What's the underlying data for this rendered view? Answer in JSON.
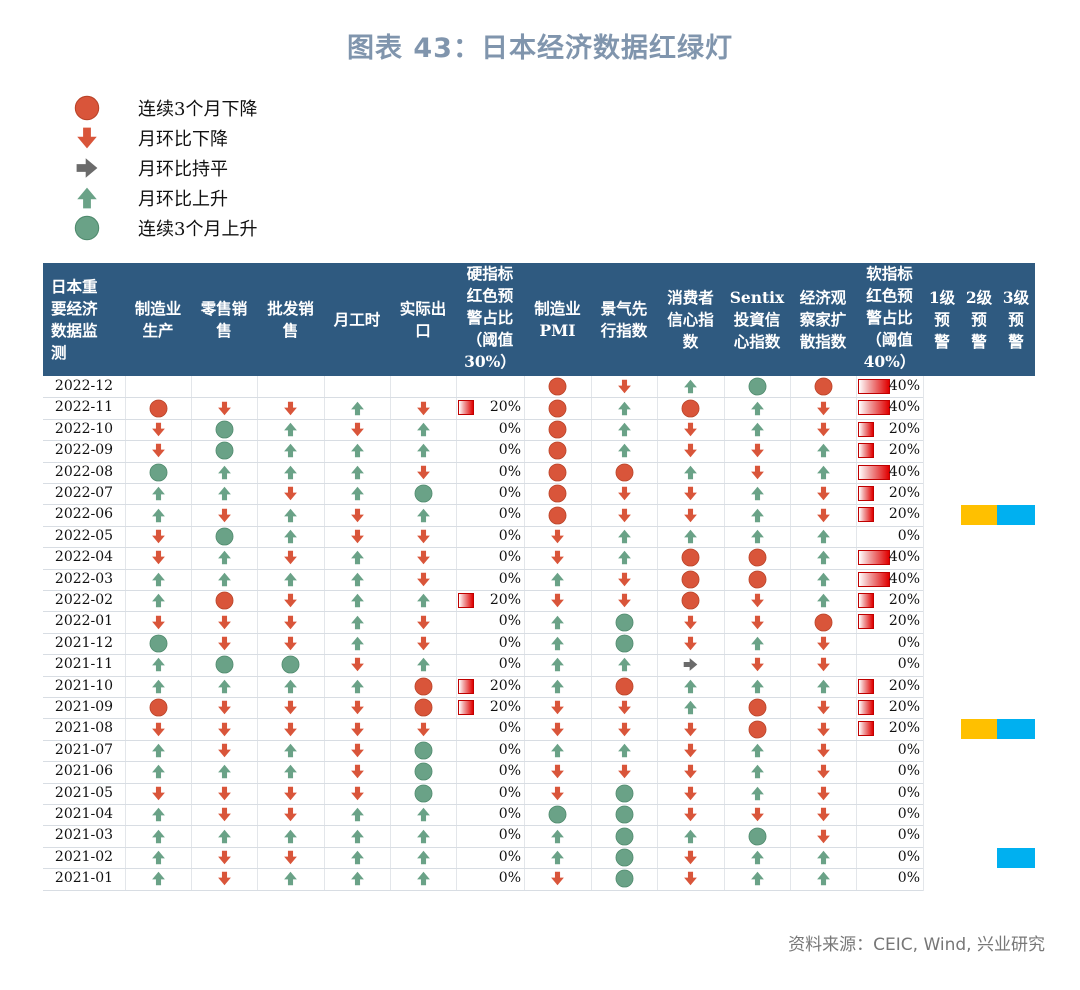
{
  "title": "图表 43：日本经济数据红绿灯",
  "legend": [
    {
      "icon": "red-circle-icon",
      "label": "连续3个月下降"
    },
    {
      "icon": "red-down-arrow-icon",
      "label": "月环比下降"
    },
    {
      "icon": "gray-right-arrow-icon",
      "label": "月环比持平"
    },
    {
      "icon": "green-up-arrow-icon",
      "label": "月环比上升"
    },
    {
      "icon": "green-circle-icon",
      "label": "连续3个月上升"
    }
  ],
  "colors": {
    "red": "#d9553a",
    "green": "#6aa287",
    "gray": "#6b6b6b",
    "header": "#2f5a80",
    "yellow": "#ffc000",
    "blue": "#00b0f0"
  },
  "source": "资料来源：CEIC, Wind, 兴业研究",
  "chart_data": {
    "type": "table",
    "columns": [
      "日本重要经济数据监测",
      "制造业生产",
      "零售销售",
      "批发销售",
      "月工时",
      "实际出口",
      "硬指标红色预警占比（阈值30%）",
      "制造业PMI",
      "景气先行指数",
      "消费者信心指数",
      "Sentix投資信心指数",
      "经济观察家扩散指数",
      "软指标红色预警占比（阈值40%）",
      "1级预警",
      "2级预警",
      "3级预警"
    ],
    "code_legend": {
      "R": "连续3个月下降",
      "d": "月环比下降",
      "f": "月环比持平",
      "u": "月环比上升",
      "G": "连续3个月上升"
    },
    "rows": [
      {
        "date": "2022-12",
        "hard": [
          "",
          "",
          "",
          "",
          ""
        ],
        "hard_pct": null,
        "soft": [
          "R",
          "d",
          "u",
          "G",
          "R"
        ],
        "soft_pct": 0.4,
        "warn": [
          0,
          0,
          0
        ]
      },
      {
        "date": "2022-11",
        "hard": [
          "R",
          "d",
          "d",
          "u",
          "d"
        ],
        "hard_pct": 0.2,
        "soft": [
          "R",
          "u",
          "R",
          "u",
          "d"
        ],
        "soft_pct": 0.4,
        "warn": [
          0,
          0,
          0
        ]
      },
      {
        "date": "2022-10",
        "hard": [
          "d",
          "G",
          "u",
          "d",
          "u"
        ],
        "hard_pct": 0,
        "soft": [
          "R",
          "u",
          "d",
          "u",
          "d"
        ],
        "soft_pct": 0.2,
        "warn": [
          0,
          0,
          0
        ]
      },
      {
        "date": "2022-09",
        "hard": [
          "d",
          "G",
          "u",
          "u",
          "u"
        ],
        "hard_pct": 0,
        "soft": [
          "R",
          "u",
          "d",
          "d",
          "u"
        ],
        "soft_pct": 0.2,
        "warn": [
          0,
          0,
          0
        ]
      },
      {
        "date": "2022-08",
        "hard": [
          "G",
          "u",
          "u",
          "u",
          "d"
        ],
        "hard_pct": 0,
        "soft": [
          "R",
          "R",
          "u",
          "d",
          "u"
        ],
        "soft_pct": 0.4,
        "warn": [
          0,
          0,
          0
        ]
      },
      {
        "date": "2022-07",
        "hard": [
          "u",
          "u",
          "d",
          "u",
          "G"
        ],
        "hard_pct": 0,
        "soft": [
          "R",
          "d",
          "d",
          "u",
          "d"
        ],
        "soft_pct": 0.2,
        "warn": [
          0,
          0,
          0
        ]
      },
      {
        "date": "2022-06",
        "hard": [
          "u",
          "d",
          "u",
          "d",
          "u"
        ],
        "hard_pct": 0,
        "soft": [
          "R",
          "d",
          "d",
          "u",
          "d"
        ],
        "soft_pct": 0.2,
        "warn": [
          0,
          1,
          1
        ]
      },
      {
        "date": "2022-05",
        "hard": [
          "d",
          "G",
          "u",
          "d",
          "d"
        ],
        "hard_pct": 0,
        "soft": [
          "d",
          "u",
          "u",
          "u",
          "u"
        ],
        "soft_pct": 0,
        "warn": [
          0,
          0,
          0
        ]
      },
      {
        "date": "2022-04",
        "hard": [
          "d",
          "u",
          "d",
          "u",
          "d"
        ],
        "hard_pct": 0,
        "soft": [
          "d",
          "u",
          "R",
          "R",
          "u"
        ],
        "soft_pct": 0.4,
        "warn": [
          0,
          0,
          0
        ]
      },
      {
        "date": "2022-03",
        "hard": [
          "u",
          "u",
          "u",
          "u",
          "d"
        ],
        "hard_pct": 0,
        "soft": [
          "u",
          "d",
          "R",
          "R",
          "u"
        ],
        "soft_pct": 0.4,
        "warn": [
          0,
          0,
          0
        ]
      },
      {
        "date": "2022-02",
        "hard": [
          "u",
          "R",
          "d",
          "u",
          "u"
        ],
        "hard_pct": 0.2,
        "soft": [
          "d",
          "d",
          "R",
          "d",
          "u"
        ],
        "soft_pct": 0.2,
        "warn": [
          0,
          0,
          0
        ]
      },
      {
        "date": "2022-01",
        "hard": [
          "d",
          "d",
          "d",
          "u",
          "d"
        ],
        "hard_pct": 0,
        "soft": [
          "u",
          "G",
          "d",
          "d",
          "R"
        ],
        "soft_pct": 0.2,
        "warn": [
          0,
          0,
          0
        ]
      },
      {
        "date": "2021-12",
        "hard": [
          "G",
          "d",
          "d",
          "u",
          "d"
        ],
        "hard_pct": 0,
        "soft": [
          "u",
          "G",
          "d",
          "u",
          "d"
        ],
        "soft_pct": 0,
        "warn": [
          0,
          0,
          0
        ]
      },
      {
        "date": "2021-11",
        "hard": [
          "u",
          "G",
          "G",
          "d",
          "u"
        ],
        "hard_pct": 0,
        "soft": [
          "u",
          "u",
          "f",
          "d",
          "d"
        ],
        "soft_pct": 0,
        "warn": [
          0,
          0,
          0
        ]
      },
      {
        "date": "2021-10",
        "hard": [
          "u",
          "u",
          "u",
          "u",
          "R"
        ],
        "hard_pct": 0.2,
        "soft": [
          "u",
          "R",
          "u",
          "u",
          "u"
        ],
        "soft_pct": 0.2,
        "warn": [
          0,
          0,
          0
        ]
      },
      {
        "date": "2021-09",
        "hard": [
          "R",
          "d",
          "d",
          "d",
          "R"
        ],
        "hard_pct": 0.2,
        "soft": [
          "d",
          "d",
          "u",
          "R",
          "d"
        ],
        "soft_pct": 0.2,
        "warn": [
          0,
          0,
          0
        ]
      },
      {
        "date": "2021-08",
        "hard": [
          "d",
          "d",
          "d",
          "d",
          "d"
        ],
        "hard_pct": 0,
        "soft": [
          "d",
          "d",
          "d",
          "R",
          "d"
        ],
        "soft_pct": 0.2,
        "warn": [
          0,
          1,
          1
        ]
      },
      {
        "date": "2021-07",
        "hard": [
          "u",
          "d",
          "u",
          "d",
          "G"
        ],
        "hard_pct": 0,
        "soft": [
          "u",
          "u",
          "d",
          "u",
          "d"
        ],
        "soft_pct": 0,
        "warn": [
          0,
          0,
          0
        ]
      },
      {
        "date": "2021-06",
        "hard": [
          "u",
          "u",
          "u",
          "d",
          "G"
        ],
        "hard_pct": 0,
        "soft": [
          "d",
          "d",
          "d",
          "u",
          "d"
        ],
        "soft_pct": 0,
        "warn": [
          0,
          0,
          0
        ]
      },
      {
        "date": "2021-05",
        "hard": [
          "d",
          "d",
          "d",
          "d",
          "G"
        ],
        "hard_pct": 0,
        "soft": [
          "d",
          "G",
          "d",
          "u",
          "d"
        ],
        "soft_pct": 0,
        "warn": [
          0,
          0,
          0
        ]
      },
      {
        "date": "2021-04",
        "hard": [
          "u",
          "d",
          "d",
          "u",
          "u"
        ],
        "hard_pct": 0,
        "soft": [
          "G",
          "G",
          "d",
          "d",
          "d"
        ],
        "soft_pct": 0,
        "warn": [
          0,
          0,
          0
        ]
      },
      {
        "date": "2021-03",
        "hard": [
          "u",
          "u",
          "u",
          "u",
          "u"
        ],
        "hard_pct": 0,
        "soft": [
          "u",
          "G",
          "u",
          "G",
          "d"
        ],
        "soft_pct": 0,
        "warn": [
          0,
          0,
          0
        ]
      },
      {
        "date": "2021-02",
        "hard": [
          "u",
          "d",
          "d",
          "u",
          "u"
        ],
        "hard_pct": 0,
        "soft": [
          "u",
          "G",
          "d",
          "u",
          "u"
        ],
        "soft_pct": 0,
        "warn": [
          0,
          0,
          1
        ]
      },
      {
        "date": "2021-01",
        "hard": [
          "u",
          "d",
          "u",
          "u",
          "u"
        ],
        "hard_pct": 0,
        "soft": [
          "d",
          "G",
          "d",
          "u",
          "u"
        ],
        "soft_pct": 0,
        "warn": [
          0,
          0,
          0
        ]
      }
    ]
  }
}
